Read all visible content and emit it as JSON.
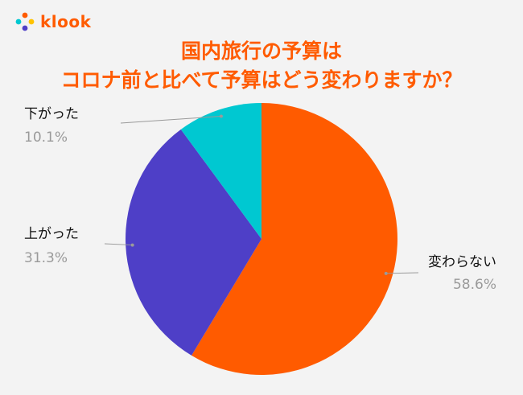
{
  "brand": {
    "name": "klook"
  },
  "title": {
    "line1": "国内旅行の予算は",
    "line2": "コロナ前と比べて予算はどう変わりますか？"
  },
  "colors": {
    "accent": "#ff5b00",
    "slice1": "#ff5b00",
    "slice2": "#4e3fc7",
    "slice3": "#00c8d1"
  },
  "chart_data": {
    "type": "pie",
    "title": "国内旅行の予算は コロナ前と比べて予算はどう変わりますか？",
    "slices": [
      {
        "label": "変わらない",
        "value": 58.6,
        "display": "58.6%",
        "color": "#ff5b00"
      },
      {
        "label": "上がった",
        "value": 31.3,
        "display": "31.3%",
        "color": "#4e3fc7"
      },
      {
        "label": "下がった",
        "value": 10.1,
        "display": "10.1%",
        "color": "#00c8d1"
      }
    ],
    "start": "12 o'clock",
    "direction": "clockwise",
    "legend": "none",
    "labels": "callout"
  }
}
